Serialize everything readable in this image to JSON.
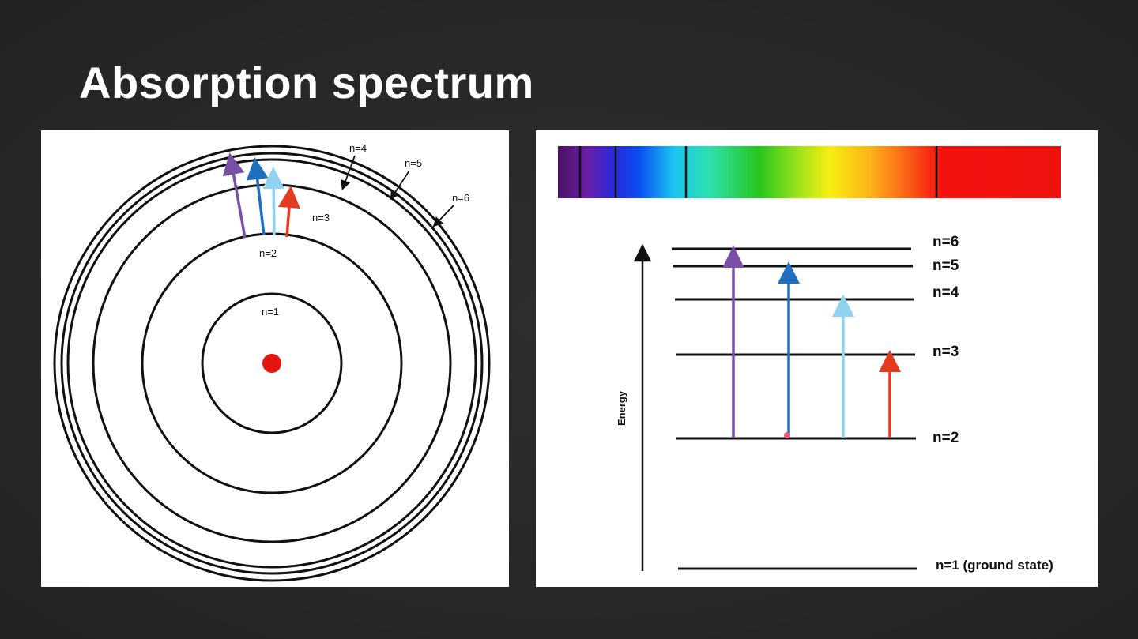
{
  "title": "Absorption spectrum",
  "bohr_model": {
    "shells": [
      {
        "label": "n=1"
      },
      {
        "label": "n=2"
      },
      {
        "label": "n=3"
      },
      {
        "label": "n=4"
      },
      {
        "label": "n=5"
      },
      {
        "label": "n=6"
      }
    ],
    "nucleus_color": "#e4160f",
    "transitions": [
      {
        "from": "n=2",
        "to": "n=6",
        "color": "#7a4fa6"
      },
      {
        "from": "n=2",
        "to": "n=5",
        "color": "#1f6fbf"
      },
      {
        "from": "n=2",
        "to": "n=4",
        "color": "#8fd3f0"
      },
      {
        "from": "n=2",
        "to": "n=3",
        "color": "#e43a1f"
      }
    ]
  },
  "spectrum": {
    "absorption_lines": [
      "violet",
      "violet-blue",
      "blue-green",
      "red"
    ]
  },
  "energy_diagram": {
    "axis_label": "Energy",
    "levels": [
      {
        "label": "n=6"
      },
      {
        "label": "n=5"
      },
      {
        "label": "n=4"
      },
      {
        "label": "n=3"
      },
      {
        "label": "n=2"
      },
      {
        "label": "n=1 (ground state)"
      }
    ],
    "transitions": [
      {
        "from": "n=2",
        "to": "n=6",
        "color": "#7a4fa6"
      },
      {
        "from": "n=2",
        "to": "n=5",
        "color": "#1f6fbf"
      },
      {
        "from": "n=2",
        "to": "n=4",
        "color": "#8fd3f0"
      },
      {
        "from": "n=2",
        "to": "n=3",
        "color": "#e43a1f"
      }
    ]
  }
}
